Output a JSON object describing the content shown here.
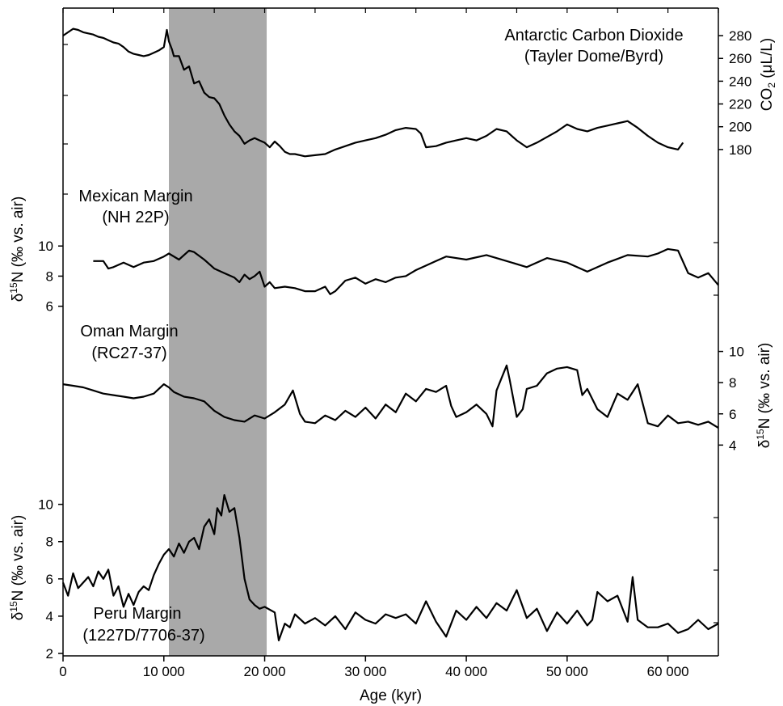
{
  "chart_data": {
    "type": "line",
    "highlight_band": {
      "x_start": 10500,
      "x_end": 20200,
      "color": "#a9a9a9"
    },
    "x_axis": {
      "label": "Age (kyr)",
      "range": [
        0,
        65000
      ],
      "ticks": [
        0,
        10000,
        20000,
        30000,
        40000,
        50000,
        60000
      ],
      "tick_labels": [
        "0",
        "10 000",
        "20 000",
        "30 000",
        "40 000",
        "50 000",
        "60 000"
      ]
    },
    "panels": [
      {
        "id": "co2",
        "title": [
          "Antarctic Carbon Dioxide",
          "(Tayler Dome/Byrd)"
        ],
        "axis": {
          "side": "right",
          "label": "CO₂ (μL/L)",
          "label_main": "CO",
          "label_sub": "2",
          "label_unit": " (μL/L)",
          "range": [
            165,
            290
          ],
          "ticks": [
            180,
            200,
            220,
            240,
            260,
            280
          ],
          "tick_labels": [
            "180",
            "200",
            "220",
            "240",
            "260",
            "280"
          ]
        },
        "x": [
          0,
          500,
          1000,
          1500,
          2000,
          2500,
          3000,
          3500,
          4000,
          4500,
          5000,
          5500,
          6000,
          6500,
          7000,
          7500,
          8000,
          8500,
          9000,
          9500,
          10000,
          10300,
          10500,
          10800,
          11000,
          11500,
          12000,
          12500,
          13000,
          13500,
          14000,
          14500,
          15000,
          15500,
          16000,
          16500,
          17000,
          17500,
          18000,
          18500,
          19000,
          19500,
          20000,
          20500,
          21000,
          21500,
          22000,
          22500,
          23000,
          24000,
          25000,
          26000,
          27000,
          28000,
          29000,
          30000,
          31000,
          32000,
          33000,
          34000,
          35000,
          35500,
          36000,
          37000,
          38000,
          39000,
          40000,
          41000,
          42000,
          43000,
          44000,
          45000,
          46000,
          47000,
          48000,
          49000,
          50000,
          51000,
          52000,
          53000,
          54000,
          55000,
          56000,
          57000,
          58000,
          59000,
          60000,
          61000,
          61500
        ],
        "y": [
          280,
          283,
          286,
          285,
          283,
          282,
          281,
          279,
          278,
          276,
          274,
          273,
          270,
          266,
          264,
          263,
          262,
          263,
          265,
          267,
          270,
          285,
          275,
          268,
          262,
          262,
          250,
          253,
          238,
          240,
          230,
          226,
          225,
          220,
          210,
          202,
          196,
          192,
          185,
          188,
          190,
          188,
          186,
          182,
          187,
          183,
          178,
          176,
          176,
          174,
          175,
          176,
          180,
          183,
          186,
          188,
          190,
          193,
          197,
          199,
          198,
          194,
          182,
          183,
          186,
          188,
          190,
          188,
          192,
          198,
          196,
          188,
          182,
          186,
          191,
          196,
          202,
          198,
          196,
          199,
          201,
          203,
          205,
          199,
          192,
          186,
          182,
          180,
          186
        ]
      },
      {
        "id": "mexican",
        "title": [
          "Mexican Margin",
          "(NH 22P)"
        ],
        "axis": {
          "side": "left",
          "label": "δ15N (‰ vs. air)",
          "label_delta": "δ",
          "label_sup": "15",
          "label_rest": "N (‰ vs. air)",
          "range": [
            5.5,
            11.3
          ],
          "ticks": [
            6,
            8,
            10
          ],
          "tick_labels": [
            "6",
            "8",
            "10"
          ]
        },
        "x": [
          3000,
          4000,
          4500,
          5000,
          6000,
          7000,
          8000,
          9000,
          10000,
          10500,
          11500,
          12500,
          13000,
          14000,
          15000,
          16000,
          17000,
          17500,
          18000,
          18500,
          19000,
          19500,
          20000,
          20500,
          21000,
          22000,
          23000,
          24000,
          25000,
          26000,
          26500,
          27000,
          28000,
          29000,
          30000,
          31000,
          32000,
          33000,
          34000,
          35000,
          36000,
          37000,
          38000,
          40000,
          42000,
          44000,
          46000,
          48000,
          50000,
          52000,
          54000,
          56000,
          58000,
          59000,
          60000,
          61000,
          62000,
          63000,
          64000,
          65000
        ],
        "y": [
          9.0,
          9.0,
          8.5,
          8.6,
          8.9,
          8.6,
          8.9,
          9.0,
          9.3,
          9.5,
          9.1,
          9.7,
          9.6,
          9.1,
          8.5,
          8.2,
          7.9,
          7.6,
          8.1,
          7.8,
          8.0,
          8.3,
          7.3,
          7.6,
          7.2,
          7.3,
          7.2,
          7.0,
          7.0,
          7.3,
          6.8,
          7.0,
          7.7,
          7.9,
          7.5,
          7.8,
          7.6,
          7.9,
          8.0,
          8.4,
          8.7,
          9.0,
          9.3,
          9.1,
          9.4,
          9.0,
          8.6,
          9.2,
          8.9,
          8.3,
          8.9,
          9.4,
          9.3,
          9.5,
          9.8,
          9.7,
          8.2,
          7.9,
          8.2,
          7.4
        ]
      },
      {
        "id": "oman",
        "title": [
          "Oman Margin",
          "(RC27-37)"
        ],
        "axis": {
          "side": "right",
          "label": "δ15N (‰ vs. air)",
          "label_delta": "δ",
          "label_sup": "15",
          "label_rest": "N (‰ vs. air)",
          "range": [
            3.5,
            10.6
          ],
          "ticks": [
            4,
            6,
            8,
            10
          ],
          "tick_labels": [
            "4",
            "6",
            "8",
            "10"
          ]
        },
        "x": [
          0,
          1000,
          2000,
          3000,
          4000,
          5000,
          6000,
          7000,
          8000,
          9000,
          10000,
          10500,
          11000,
          12000,
          13000,
          14000,
          15000,
          16000,
          17000,
          18000,
          19000,
          20000,
          21000,
          22000,
          22800,
          23500,
          24000,
          25000,
          26000,
          27000,
          28000,
          29000,
          30000,
          31000,
          32000,
          33000,
          34000,
          35000,
          36000,
          37000,
          38000,
          38500,
          39000,
          40000,
          41000,
          42000,
          42600,
          43000,
          44000,
          44300,
          45000,
          45600,
          46000,
          47000,
          48000,
          49000,
          50000,
          51000,
          51500,
          52000,
          53000,
          54000,
          55000,
          56000,
          57000,
          58000,
          59000,
          60000,
          61000,
          62000,
          63000,
          64000,
          65000
        ],
        "y": [
          7.9,
          7.8,
          7.7,
          7.5,
          7.3,
          7.2,
          7.1,
          7.0,
          7.1,
          7.3,
          7.9,
          7.7,
          7.4,
          7.1,
          7.0,
          6.8,
          6.2,
          5.8,
          5.6,
          5.5,
          5.9,
          5.7,
          6.1,
          6.6,
          7.5,
          6.0,
          5.5,
          5.4,
          5.9,
          5.6,
          6.2,
          5.8,
          6.4,
          5.7,
          6.6,
          6.1,
          7.3,
          6.8,
          7.6,
          7.4,
          7.8,
          6.5,
          5.8,
          6.1,
          6.6,
          6.0,
          5.2,
          7.5,
          9.1,
          8.2,
          5.8,
          6.3,
          7.6,
          7.8,
          8.6,
          8.9,
          9.0,
          8.8,
          7.2,
          7.6,
          6.3,
          5.8,
          7.3,
          6.9,
          7.9,
          5.4,
          5.2,
          5.9,
          5.4,
          5.5,
          5.3,
          5.5,
          5.1
        ]
      },
      {
        "id": "peru",
        "title": [
          "Peru Margin",
          "(1227D/7706-37)"
        ],
        "axis": {
          "side": "left",
          "label": "δ15N (‰ vs. air)",
          "label_delta": "δ",
          "label_sup": "15",
          "label_rest": "N (‰ vs. air)",
          "range": [
            2,
            11.2
          ],
          "ticks": [
            2,
            4,
            6,
            8,
            10
          ],
          "tick_labels": [
            "2",
            "4",
            "6",
            "8",
            "10"
          ]
        },
        "x": [
          0,
          500,
          1000,
          1500,
          2000,
          2500,
          3000,
          3500,
          4000,
          4500,
          5000,
          5500,
          6000,
          6500,
          7000,
          7500,
          8000,
          8500,
          9000,
          9500,
          10000,
          10500,
          11000,
          11500,
          12000,
          12500,
          13000,
          13500,
          14000,
          14500,
          15000,
          15300,
          15700,
          16000,
          16500,
          17000,
          17500,
          18000,
          18500,
          19000,
          19500,
          20000,
          21000,
          21400,
          22000,
          22500,
          23000,
          24000,
          25000,
          26000,
          27000,
          28000,
          29000,
          30000,
          31000,
          32000,
          33000,
          34000,
          35000,
          36000,
          37000,
          38000,
          39000,
          40000,
          41000,
          42000,
          43000,
          44000,
          45000,
          46000,
          47000,
          48000,
          49000,
          50000,
          51000,
          52000,
          52500,
          53000,
          54000,
          55000,
          56000,
          56500,
          57000,
          58000,
          59000,
          60000,
          61000,
          62000,
          63000,
          64000,
          65000
        ],
        "y": [
          5.8,
          5.1,
          6.3,
          5.5,
          5.8,
          6.1,
          5.6,
          6.4,
          6.0,
          6.5,
          5.1,
          5.6,
          4.5,
          5.2,
          4.6,
          5.3,
          5.6,
          5.4,
          6.2,
          6.8,
          7.3,
          7.6,
          7.2,
          7.9,
          7.4,
          8.0,
          8.2,
          7.6,
          8.8,
          9.2,
          8.4,
          9.8,
          9.4,
          10.5,
          9.6,
          9.8,
          8.2,
          6.0,
          4.9,
          4.6,
          4.4,
          4.5,
          4.2,
          2.7,
          3.6,
          3.4,
          4.1,
          3.6,
          3.9,
          3.5,
          4.0,
          3.3,
          4.2,
          3.8,
          3.6,
          4.1,
          3.9,
          4.1,
          3.6,
          4.8,
          3.7,
          2.9,
          4.3,
          3.8,
          4.5,
          3.9,
          4.7,
          4.3,
          5.4,
          3.9,
          4.4,
          3.2,
          4.2,
          3.6,
          4.3,
          3.5,
          3.8,
          5.3,
          4.8,
          5.1,
          3.7,
          6.1,
          3.8,
          3.4,
          3.4,
          3.6,
          3.1,
          3.3,
          3.8,
          3.3,
          3.6
        ]
      }
    ]
  }
}
